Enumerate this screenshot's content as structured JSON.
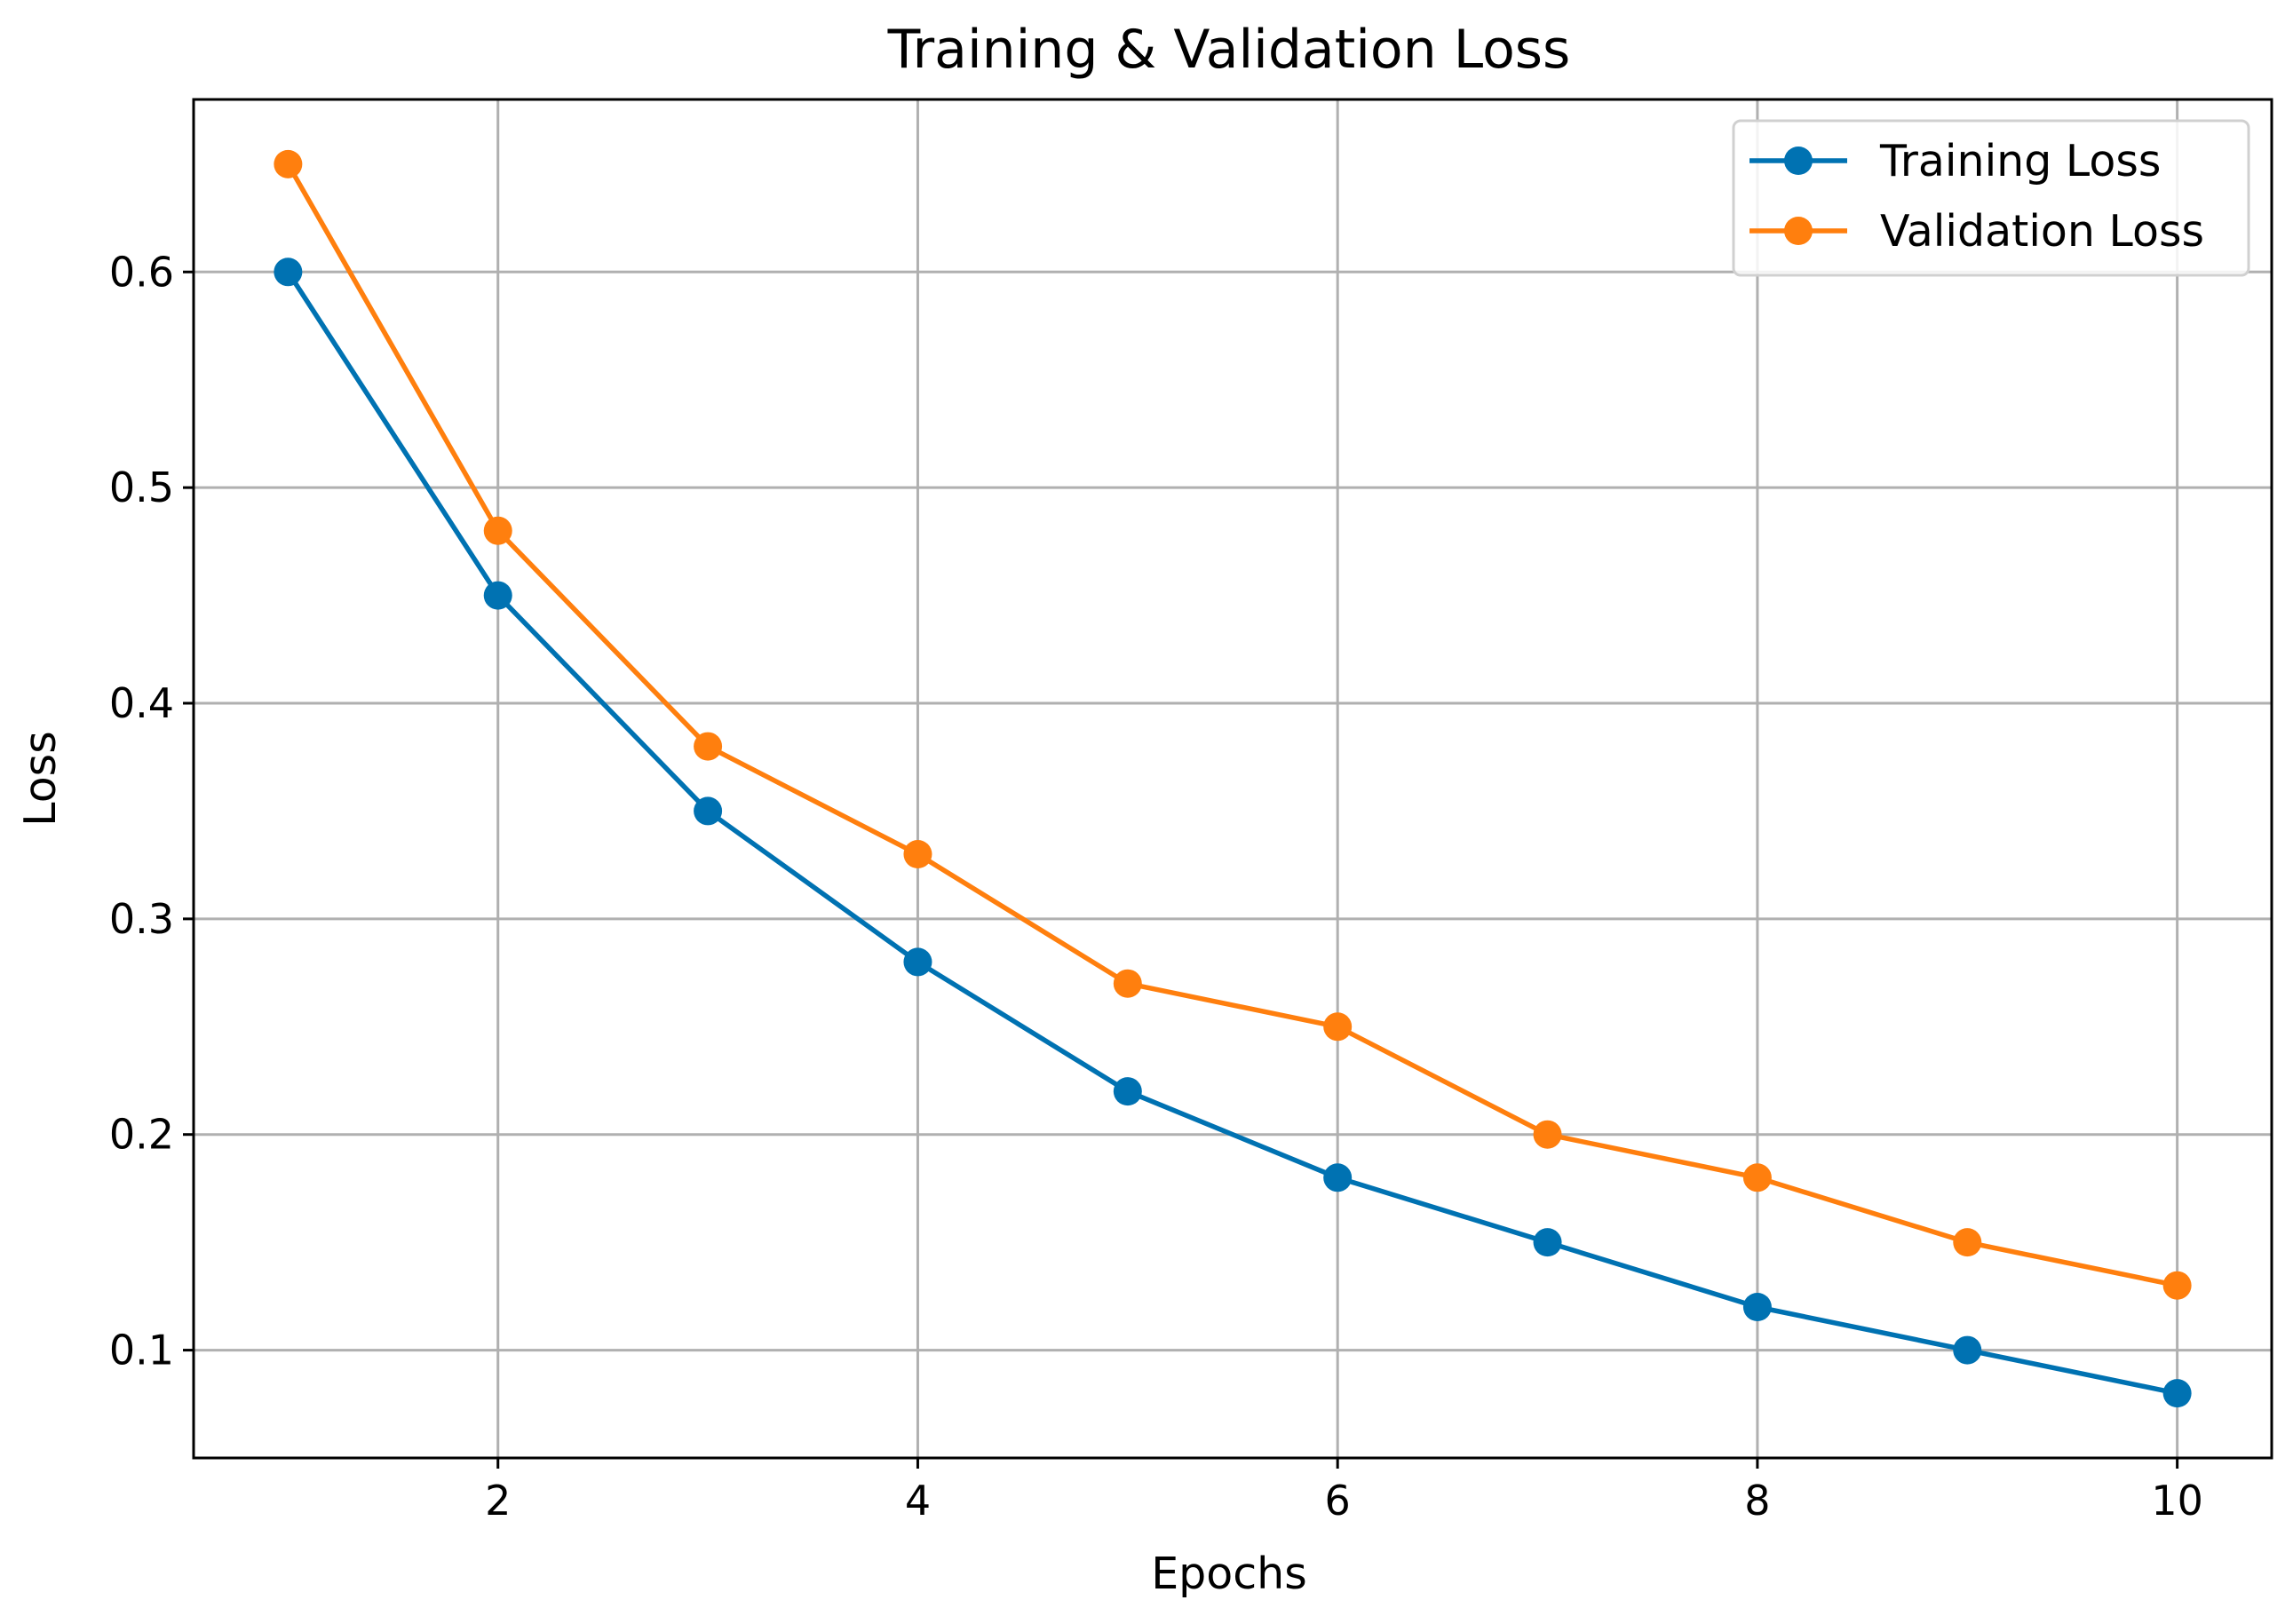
{
  "chart_data": {
    "type": "line",
    "title": "Training & Validation Loss",
    "xlabel": "Epochs",
    "ylabel": "Loss",
    "x": [
      1,
      2,
      3,
      4,
      5,
      6,
      7,
      8,
      9,
      10
    ],
    "xlim": [
      0.55,
      10.45
    ],
    "ylim": [
      0.05,
      0.68
    ],
    "xticks": [
      2,
      4,
      6,
      8,
      10
    ],
    "yticks": [
      0.1,
      0.2,
      0.3,
      0.4,
      0.5,
      0.6
    ],
    "xtick_labels": [
      "2",
      "4",
      "6",
      "8",
      "10"
    ],
    "ytick_labels": [
      "0.1",
      "0.2",
      "0.3",
      "0.4",
      "0.5",
      "0.6"
    ],
    "grid": true,
    "legend_position": "top-right",
    "series": [
      {
        "name": "Training Loss",
        "color": "#0072B2",
        "marker": "circle",
        "values": [
          0.6,
          0.45,
          0.35,
          0.28,
          0.22,
          0.18,
          0.15,
          0.12,
          0.1,
          0.08
        ]
      },
      {
        "name": "Validation Loss",
        "color": "#FF7F0E",
        "marker": "circle",
        "values": [
          0.65,
          0.48,
          0.38,
          0.33,
          0.27,
          0.25,
          0.2,
          0.18,
          0.15,
          0.13
        ]
      }
    ]
  }
}
